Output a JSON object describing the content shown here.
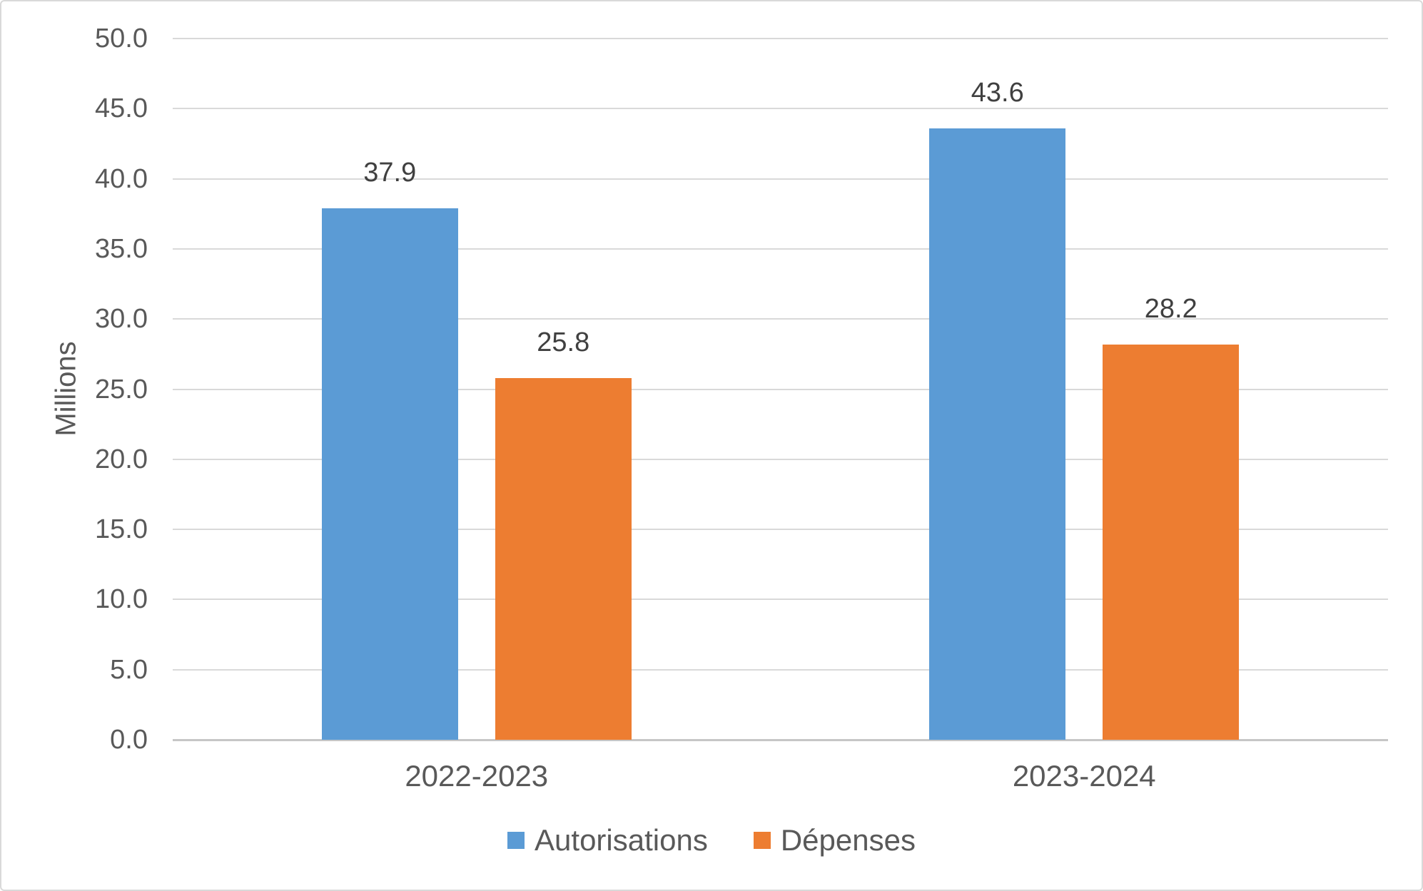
{
  "chart_data": {
    "type": "bar",
    "categories": [
      "2022-2023",
      "2023-2024"
    ],
    "series": [
      {
        "name": "Autorisations",
        "color": "#5B9BD5",
        "values": [
          37.9,
          43.6
        ]
      },
      {
        "name": "Dépenses",
        "color": "#ED7D31",
        "values": [
          25.8,
          28.2
        ]
      }
    ],
    "data_labels": [
      [
        "37.9",
        "43.6"
      ],
      [
        "25.8",
        "28.2"
      ]
    ],
    "title": "",
    "xlabel": "",
    "ylabel": "Millions",
    "ylim": [
      0,
      50
    ],
    "ytick_step": 5,
    "ytick_labels": [
      "0.0",
      "5.0",
      "10.0",
      "15.0",
      "20.0",
      "25.0",
      "30.0",
      "35.0",
      "40.0",
      "45.0",
      "50.0"
    ],
    "grid": true,
    "legend_position": "bottom",
    "gridline_color": "#D9D9D9",
    "axis_line_color": "#C6C6C6",
    "tick_text_color": "#595959",
    "data_label_color": "#404040"
  }
}
